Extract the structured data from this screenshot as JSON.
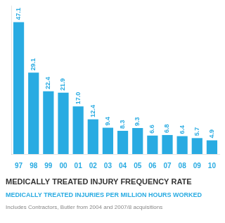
{
  "chart_data": {
    "type": "bar",
    "title": "MEDICALLY TREATED INJURY FREQUENCY RATE",
    "subtitle": [
      "MEDICALLY TREATED INJURIES PER MILLION HOURS WORKED",
      "Includes Contractors, Butler from 2004 and 2007/8 acquisitions"
    ],
    "categories": [
      "97",
      "98",
      "99",
      "00",
      "01",
      "02",
      "03",
      "04",
      "05",
      "06",
      "07",
      "08",
      "09",
      "10"
    ],
    "values": [
      47.1,
      29.1,
      22.4,
      21.9,
      17.0,
      12.4,
      9.4,
      8.3,
      9.3,
      6.6,
      6.8,
      6.4,
      5.7,
      4.9
    ],
    "value_labels": [
      "47.1",
      "29.1",
      "22.4",
      "21.9",
      "17.0",
      "12.4",
      "9.4",
      "8.3",
      "9.3",
      "6.6",
      "6.8",
      "6.4",
      "5.7",
      "4.9"
    ],
    "color": "#29ABE2",
    "ylim": [
      0,
      53
    ],
    "grid": false,
    "data_labels": true,
    "tick_labels": "x"
  }
}
